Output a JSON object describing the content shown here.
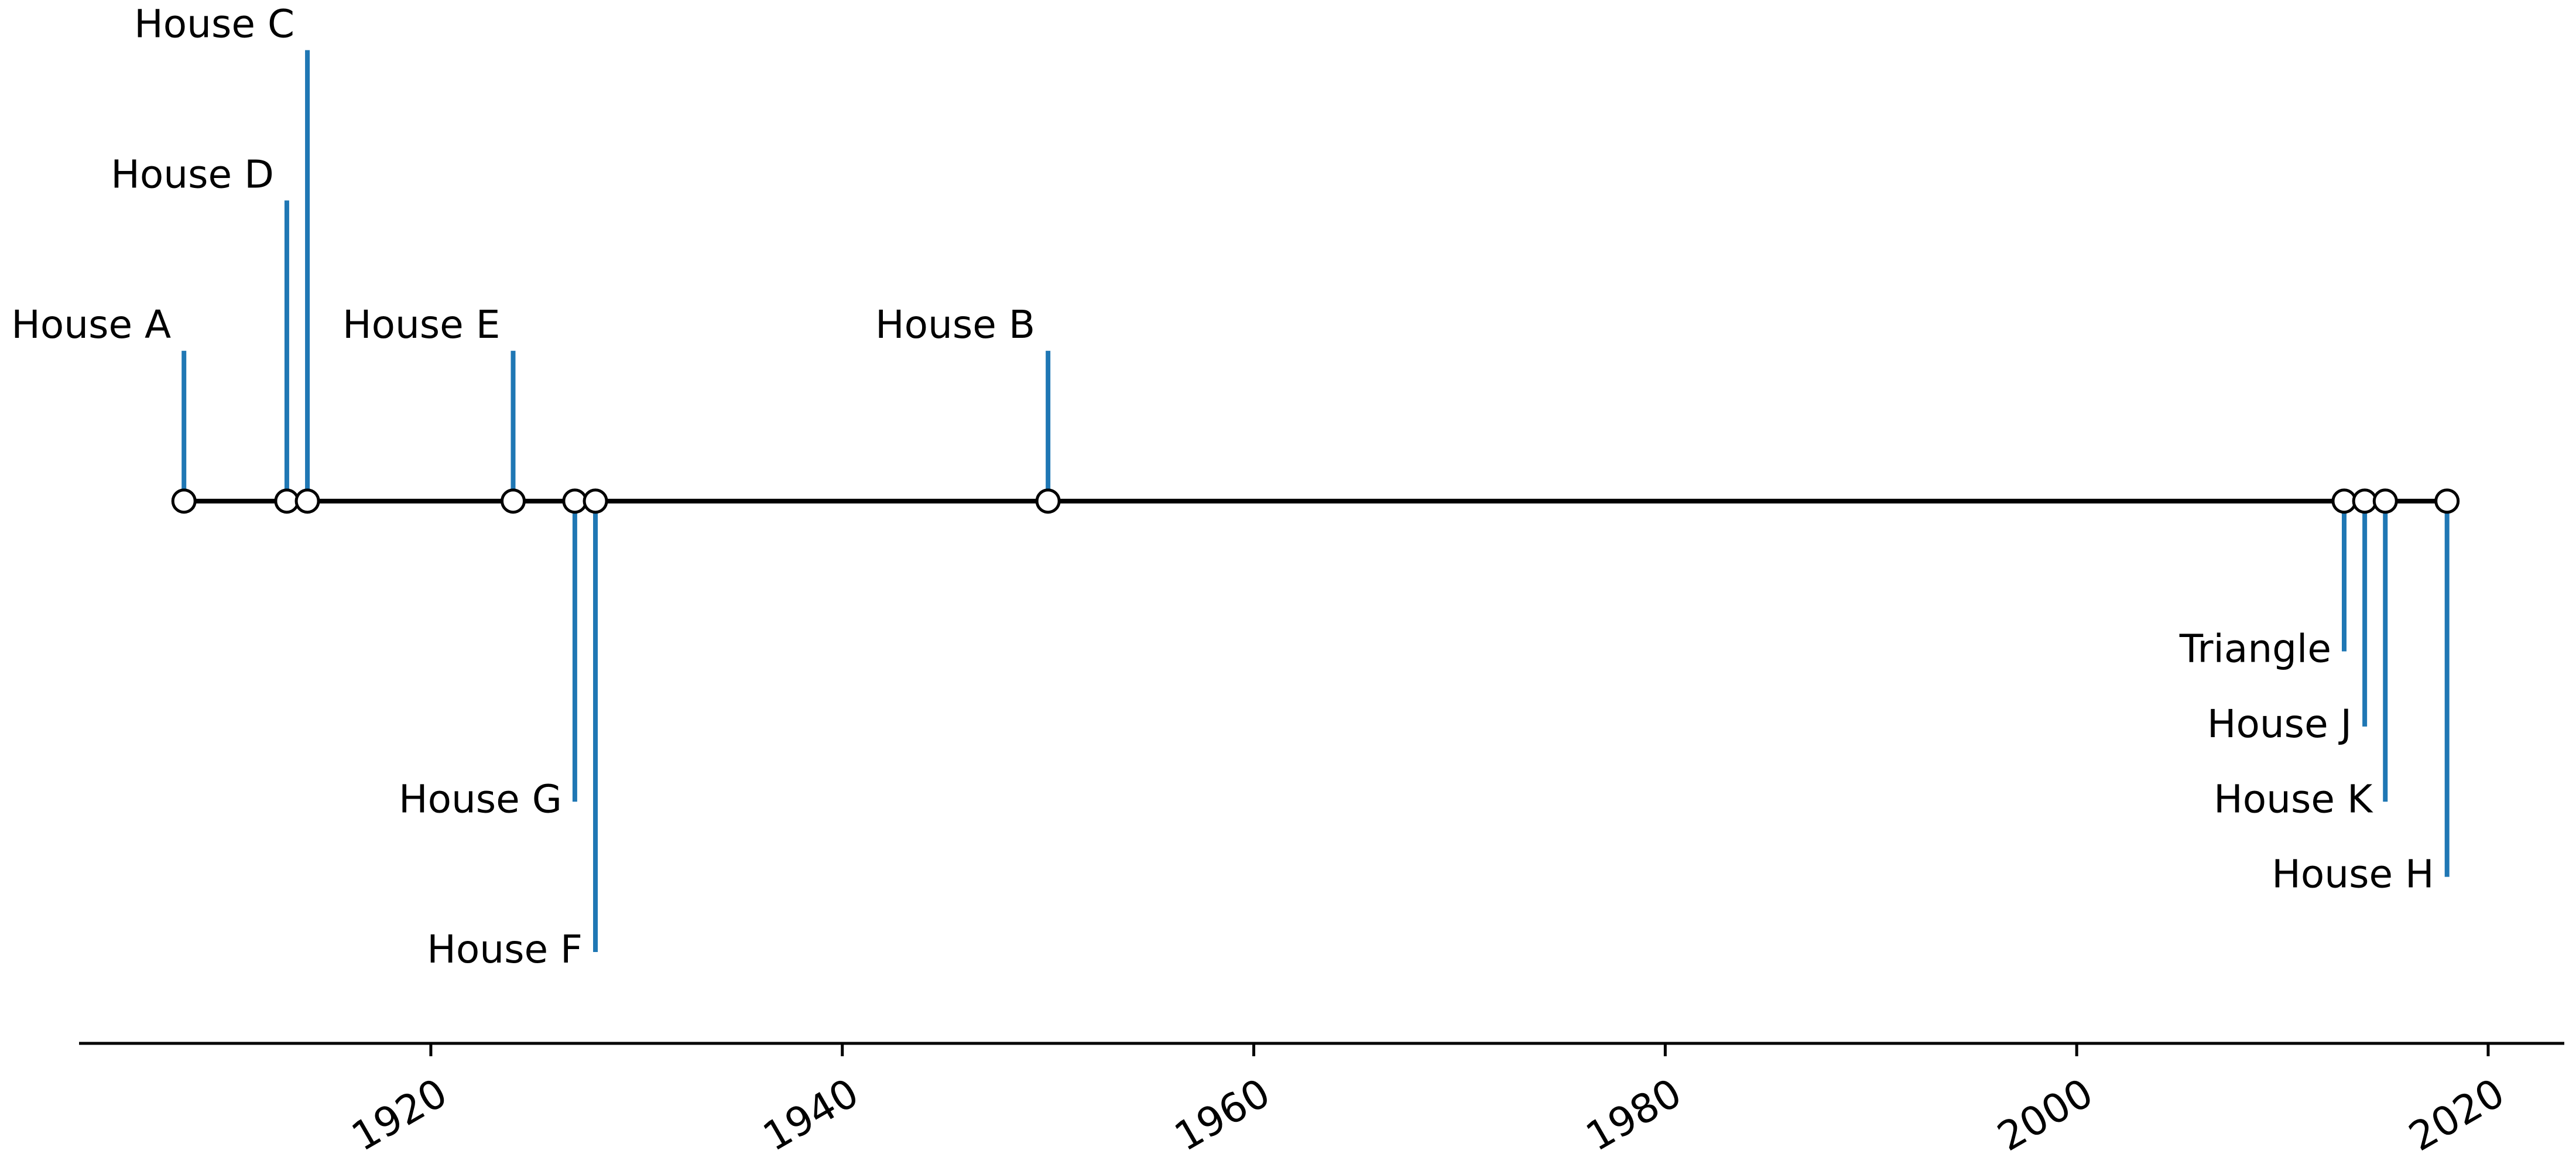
{
  "chart_data": {
    "type": "timeline",
    "title": "",
    "xlabel": "",
    "ylabel": "",
    "xlim": [
      1902.9,
      2023.7
    ],
    "ylim": [
      -3.6,
      3.1
    ],
    "grid": false,
    "ticks": [
      1920,
      1940,
      1960,
      1980,
      2000,
      2020
    ],
    "events": [
      {
        "name": "House A",
        "year": 1908,
        "level": 1
      },
      {
        "name": "House D",
        "year": 1913,
        "level": 2
      },
      {
        "name": "House C",
        "year": 1914,
        "level": 3
      },
      {
        "name": "House E",
        "year": 1924,
        "level": 1
      },
      {
        "name": "House G",
        "year": 1927,
        "level": -2
      },
      {
        "name": "House F",
        "year": 1928,
        "level": -3
      },
      {
        "name": "House B",
        "year": 1950,
        "level": 1
      },
      {
        "name": "Triangle",
        "year": 2013,
        "level": -1
      },
      {
        "name": "House J",
        "year": 2014,
        "level": -1.5
      },
      {
        "name": "House K",
        "year": 2015,
        "level": -2
      },
      {
        "name": "House H",
        "year": 2018,
        "level": -2.5
      }
    ],
    "colors": {
      "stem": "#1f77b4",
      "baseline": "#000000",
      "marker_fill": "#ffffff",
      "marker_edge": "#000000"
    }
  }
}
